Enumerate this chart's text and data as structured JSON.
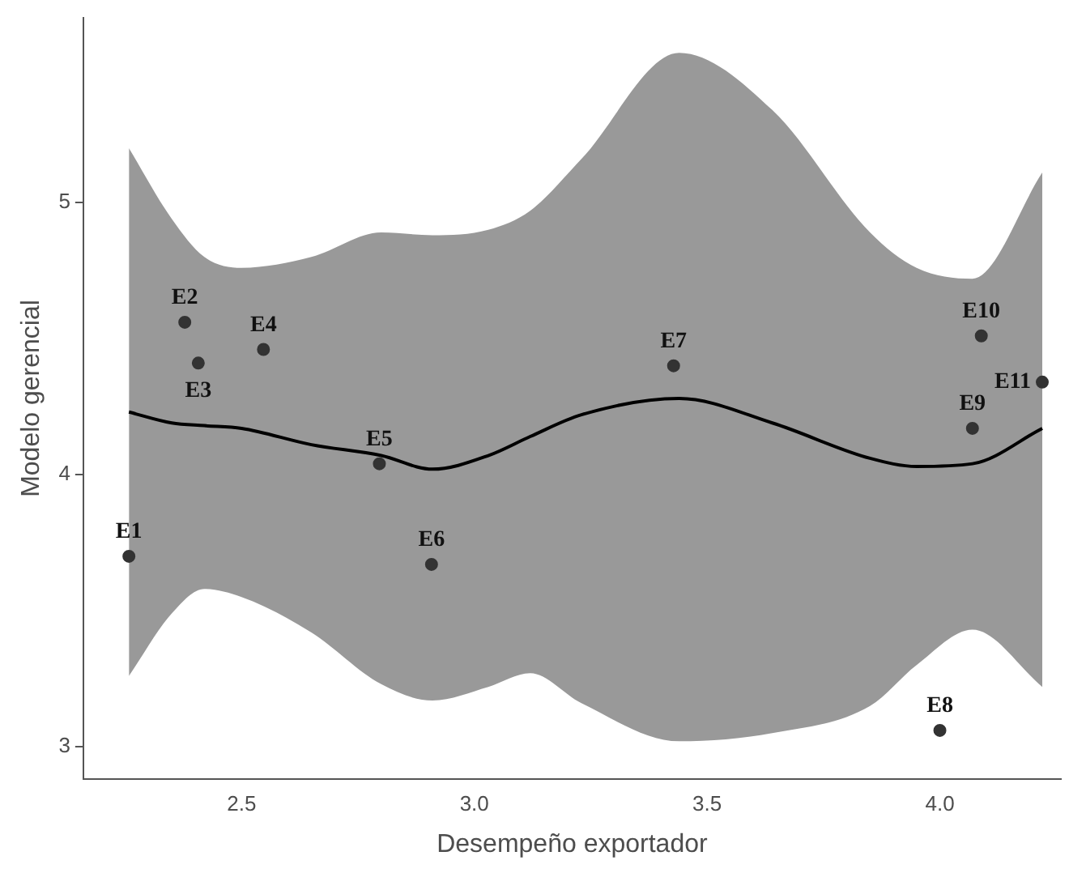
{
  "chart_data": {
    "type": "scatter",
    "xlabel": "Desempeño exportador",
    "ylabel": "Modelo gerencial",
    "xlim": [
      2.16,
      4.26
    ],
    "ylim": [
      2.88,
      5.68
    ],
    "xticks": [
      {
        "value": 2.5,
        "label": "2.5"
      },
      {
        "value": 3,
        "label": "3.0"
      },
      {
        "value": 3.5,
        "label": "3.5"
      },
      {
        "value": 4,
        "label": "4.0"
      }
    ],
    "yticks": [
      3,
      4,
      5
    ],
    "series": [
      {
        "type": "line",
        "color": "#000000",
        "x": [
          2.258,
          2.35,
          2.42,
          2.5,
          2.65,
          2.8,
          2.91,
          3.03,
          3.12,
          3.23,
          3.44,
          3.64,
          3.85,
          3.95,
          4.07,
          4.22
        ],
        "values": [
          4.23,
          4.19,
          4.18,
          4.17,
          4.11,
          4.07,
          4.02,
          4.07,
          4.14,
          4.22,
          4.28,
          4.19,
          4.06,
          4.03,
          4.04,
          4.17
        ],
        "lower": [
          3.26,
          3.49,
          3.58,
          3.55,
          3.42,
          3.23,
          3.17,
          3.22,
          3.27,
          3.16,
          3.02,
          3.05,
          3.15,
          3.3,
          3.43,
          3.22
        ],
        "upper": [
          5.2,
          4.94,
          4.8,
          4.76,
          4.8,
          4.89,
          4.88,
          4.9,
          4.97,
          5.16,
          5.55,
          5.34,
          4.89,
          4.76,
          4.72,
          5.11
        ]
      },
      {
        "type": "scatter",
        "marker": "circle",
        "color": "#333333",
        "x": [
          2.258,
          2.378,
          2.407,
          2.547,
          2.796,
          2.908,
          3.428,
          4.0,
          4.07,
          4.089,
          4.22
        ],
        "values": [
          3.7,
          4.56,
          4.41,
          4.46,
          4.04,
          3.67,
          4.4,
          3.06,
          4.17,
          4.51,
          4.34
        ]
      }
    ],
    "annotations": [
      {
        "text": "E1",
        "x": 2.258,
        "y": 3.7
      },
      {
        "text": "E2",
        "x": 2.378,
        "y": 4.56
      },
      {
        "text": "E3",
        "x": 2.407,
        "y": 4.41
      },
      {
        "text": "E4",
        "x": 2.547,
        "y": 4.46
      },
      {
        "text": "E5",
        "x": 2.796,
        "y": 4.04
      },
      {
        "text": "E6",
        "x": 2.908,
        "y": 3.67
      },
      {
        "text": "E7",
        "x": 3.428,
        "y": 4.4
      },
      {
        "text": "E8",
        "x": 4.0,
        "y": 3.06
      },
      {
        "text": "E9",
        "x": 4.07,
        "y": 4.17
      },
      {
        "text": "E10",
        "x": 4.089,
        "y": 4.51
      },
      {
        "text": "E11",
        "x": 4.22,
        "y": 4.34
      }
    ]
  }
}
